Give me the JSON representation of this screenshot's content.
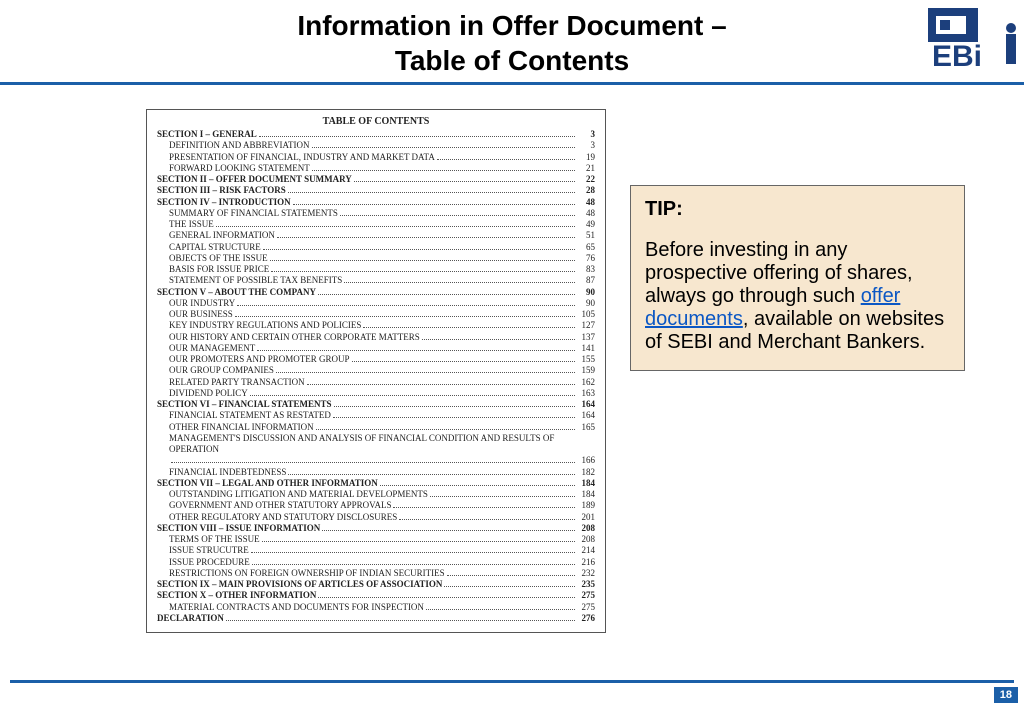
{
  "header": {
    "title_line1": "Information in Offer Document –",
    "title_line2": "Table of Contents",
    "logo_text_top": "S",
    "logo_text_bot": "EBI",
    "logo_color": "#1c3f7c",
    "rule_color": "#1b5fa8"
  },
  "toc": {
    "title": "TABLE OF CONTENTS",
    "rows": [
      {
        "label": "SECTION I – GENERAL",
        "page": "3",
        "level": 0,
        "bold": true
      },
      {
        "label": "DEFINITION AND ABBREVIATION",
        "page": "3",
        "level": 1
      },
      {
        "label": "PRESENTATION OF FINANCIAL, INDUSTRY AND MARKET DATA",
        "page": "19",
        "level": 1
      },
      {
        "label": "FORWARD LOOKING STATEMENT",
        "page": "21",
        "level": 1
      },
      {
        "label": "SECTION II – OFFER DOCUMENT SUMMARY",
        "page": "22",
        "level": 0,
        "bold": true
      },
      {
        "label": "SECTION III – RISK FACTORS",
        "page": "28",
        "level": 0,
        "bold": true
      },
      {
        "label": "SECTION IV – INTRODUCTION",
        "page": "48",
        "level": 0,
        "bold": true
      },
      {
        "label": "SUMMARY OF FINANCIAL STATEMENTS",
        "page": "48",
        "level": 1
      },
      {
        "label": "THE ISSUE",
        "page": "49",
        "level": 1
      },
      {
        "label": "GENERAL INFORMATION",
        "page": "51",
        "level": 1
      },
      {
        "label": "CAPITAL STRUCTURE",
        "page": "65",
        "level": 1
      },
      {
        "label": "OBJECTS OF THE ISSUE",
        "page": "76",
        "level": 1
      },
      {
        "label": "BASIS FOR ISSUE PRICE",
        "page": "83",
        "level": 1
      },
      {
        "label": "STATEMENT OF POSSIBLE TAX BENEFITS",
        "page": "87",
        "level": 1
      },
      {
        "label": "SECTION V – ABOUT THE COMPANY",
        "page": "90",
        "level": 0,
        "bold": true
      },
      {
        "label": "OUR INDUSTRY",
        "page": "90",
        "level": 1
      },
      {
        "label": "OUR BUSINESS",
        "page": "105",
        "level": 1
      },
      {
        "label": "KEY INDUSTRY REGULATIONS AND POLICIES",
        "page": "127",
        "level": 1
      },
      {
        "label": "OUR HISTORY AND CERTAIN OTHER CORPORATE MATTERS",
        "page": "137",
        "level": 1
      },
      {
        "label": "OUR MANAGEMENT",
        "page": "141",
        "level": 1
      },
      {
        "label": "OUR PROMOTERS AND PROMOTER GROUP",
        "page": "155",
        "level": 1
      },
      {
        "label": "OUR GROUP COMPANIES",
        "page": "159",
        "level": 1
      },
      {
        "label": "RELATED PARTY TRANSACTION",
        "page": "162",
        "level": 1
      },
      {
        "label": "DIVIDEND POLICY",
        "page": "163",
        "level": 1
      },
      {
        "label": "SECTION VI – FINANCIAL STATEMENTS",
        "page": "164",
        "level": 0,
        "bold": true
      },
      {
        "label": "FINANCIAL STATEMENT AS RESTATED",
        "page": "164",
        "level": 1
      },
      {
        "label": "OTHER FINANCIAL INFORMATION",
        "page": "165",
        "level": 1
      },
      {
        "label": "MANAGEMENT'S DISCUSSION AND ANALYSIS OF FINANCIAL CONDITION AND RESULTS OF OPERATION",
        "page": "166",
        "level": 1,
        "wrap": true
      },
      {
        "label": "FINANCIAL INDEBTEDNESS",
        "page": "182",
        "level": 1
      },
      {
        "label": "SECTION VII – LEGAL AND OTHER INFORMATION",
        "page": "184",
        "level": 0,
        "bold": true
      },
      {
        "label": "OUTSTANDING LITIGATION AND MATERIAL DEVELOPMENTS",
        "page": "184",
        "level": 1
      },
      {
        "label": "GOVERNMENT AND OTHER STATUTORY APPROVALS",
        "page": "189",
        "level": 1
      },
      {
        "label": "OTHER REGULATORY AND STATUTORY DISCLOSURES",
        "page": "201",
        "level": 1
      },
      {
        "label": "SECTION VIII – ISSUE INFORMATION",
        "page": "208",
        "level": 0,
        "bold": true
      },
      {
        "label": "TERMS OF THE ISSUE",
        "page": "208",
        "level": 1
      },
      {
        "label": "ISSUE STRUCUTRE",
        "page": "214",
        "level": 1
      },
      {
        "label": "ISSUE PROCEDURE",
        "page": "216",
        "level": 1
      },
      {
        "label": "RESTRICTIONS ON FOREIGN OWNERSHIP OF INDIAN SECURITIES",
        "page": "232",
        "level": 1
      },
      {
        "label": "SECTION IX – MAIN PROVISIONS OF ARTICLES OF ASSOCIATION",
        "page": "235",
        "level": 0,
        "bold": true
      },
      {
        "label": "SECTION X – OTHER INFORMATION",
        "page": "275",
        "level": 0,
        "bold": true
      },
      {
        "label": "MATERIAL CONTRACTS AND DOCUMENTS FOR INSPECTION",
        "page": "275",
        "level": 1
      },
      {
        "label": "DECLARATION",
        "page": "276",
        "level": 0,
        "bold": true
      }
    ]
  },
  "tip": {
    "heading": "TIP:",
    "text_before": "Before investing in any prospective offering of shares, always go through such ",
    "link_text": "offer documents",
    "text_after": ", available on websites of SEBI and Merchant Bankers.",
    "bg_color": "#f7e7cf",
    "border_color": "#666666",
    "link_color": "#0b57c4"
  },
  "footer": {
    "page_number": "18",
    "rule_color": "#1b5fa8",
    "badge_bg": "#1b5fa8"
  }
}
